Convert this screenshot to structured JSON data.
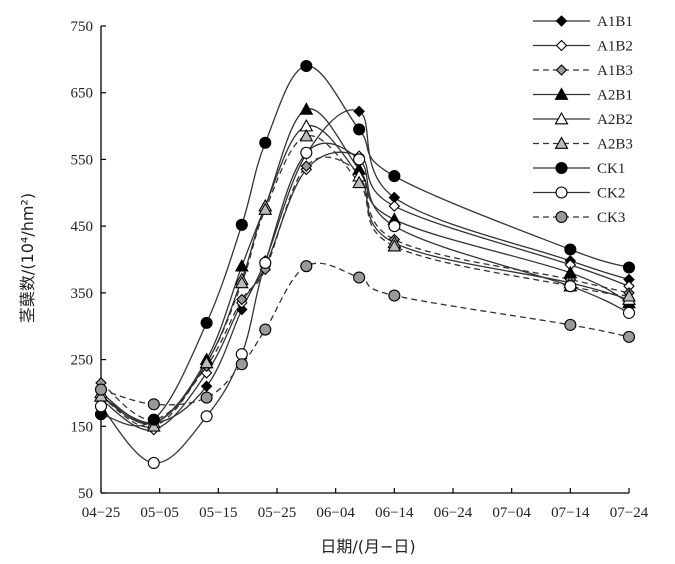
{
  "chart_data": {
    "type": "line",
    "xlabel": "日期/(月−日)",
    "ylabel": "茎蘖数/(10⁴/hm²)",
    "x_tick_labels": [
      "04−25",
      "05−05",
      "05−15",
      "05−25",
      "06−04",
      "06−14",
      "06−24",
      "07−04",
      "07−14",
      "07−24"
    ],
    "y_tick_labels": [
      "50",
      "150",
      "250",
      "350",
      "450",
      "550",
      "650",
      "750"
    ],
    "x_range_days": [
      0,
      90
    ],
    "ylim": [
      50,
      750
    ],
    "legend_position": "top-right",
    "grid": false,
    "x": [
      0,
      9,
      18,
      24,
      28,
      35,
      44,
      50,
      80,
      90
    ],
    "series": [
      {
        "name": "A1B1",
        "marker": "diamond",
        "fill": "#000000",
        "dash": "solid",
        "values": [
          195,
          155,
          210,
          325,
          398,
          558,
          622,
          493,
          398,
          370
        ]
      },
      {
        "name": "A1B2",
        "marker": "diamond",
        "fill": "#ffffff",
        "dash": "solid",
        "values": [
          190,
          145,
          230,
          335,
          390,
          535,
          555,
          480,
          392,
          360
        ]
      },
      {
        "name": "A1B3",
        "marker": "diamond",
        "fill": "#999999",
        "dash": "dashed",
        "values": [
          215,
          160,
          240,
          340,
          385,
          540,
          530,
          430,
          370,
          350
        ]
      },
      {
        "name": "A2B1",
        "marker": "triangle",
        "fill": "#000000",
        "dash": "solid",
        "values": [
          195,
          155,
          250,
          390,
          480,
          625,
          535,
          460,
          380,
          335
        ]
      },
      {
        "name": "A2B2",
        "marker": "triangle",
        "fill": "#ffffff",
        "dash": "solid",
        "values": [
          200,
          155,
          245,
          370,
          480,
          600,
          525,
          425,
          365,
          340
        ]
      },
      {
        "name": "A2B3",
        "marker": "triangle",
        "fill": "#bbbbbb",
        "dash": "dashed",
        "values": [
          195,
          150,
          245,
          365,
          475,
          585,
          515,
          420,
          360,
          345
        ]
      },
      {
        "name": "CK1",
        "marker": "circle",
        "fill": "#000000",
        "dash": "solid",
        "values": [
          168,
          160,
          305,
          452,
          575,
          690,
          595,
          525,
          415,
          388
        ]
      },
      {
        "name": "CK2",
        "marker": "circle",
        "fill": "#ffffff",
        "dash": "solid",
        "values": [
          180,
          95,
          165,
          258,
          395,
          560,
          550,
          450,
          360,
          320
        ]
      },
      {
        "name": "CK3",
        "marker": "circle",
        "fill": "#999999",
        "dash": "dashed",
        "values": [
          205,
          183,
          193,
          243,
          295,
          390,
          373,
          346,
          302,
          284
        ]
      }
    ]
  }
}
